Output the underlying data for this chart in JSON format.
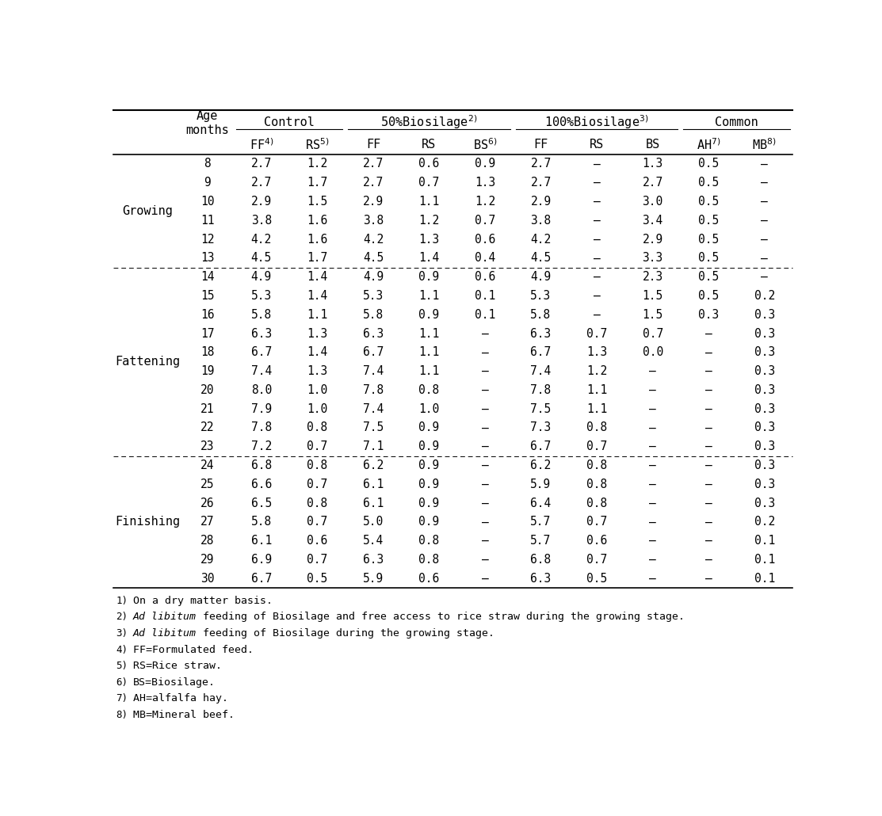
{
  "stages": [
    {
      "name": "Growing",
      "rows": [
        8,
        9,
        10,
        11,
        12,
        13
      ]
    },
    {
      "name": "Fattening",
      "rows": [
        14,
        15,
        16,
        17,
        18,
        19,
        20,
        21,
        22,
        23
      ]
    },
    {
      "name": "Finishing",
      "rows": [
        24,
        25,
        26,
        27,
        28,
        29,
        30
      ]
    }
  ],
  "data": {
    "8": [
      "2.7",
      "1.2",
      "2.7",
      "0.6",
      "0.9",
      "2.7",
      "-",
      "1.3",
      "0.5",
      "-"
    ],
    "9": [
      "2.7",
      "1.7",
      "2.7",
      "0.7",
      "1.3",
      "2.7",
      "-",
      "2.7",
      "0.5",
      "-"
    ],
    "10": [
      "2.9",
      "1.5",
      "2.9",
      "1.1",
      "1.2",
      "2.9",
      "-",
      "3.0",
      "0.5",
      "-"
    ],
    "11": [
      "3.8",
      "1.6",
      "3.8",
      "1.2",
      "0.7",
      "3.8",
      "-",
      "3.4",
      "0.5",
      "-"
    ],
    "12": [
      "4.2",
      "1.6",
      "4.2",
      "1.3",
      "0.6",
      "4.2",
      "-",
      "2.9",
      "0.5",
      "-"
    ],
    "13": [
      "4.5",
      "1.7",
      "4.5",
      "1.4",
      "0.4",
      "4.5",
      "-",
      "3.3",
      "0.5",
      "-"
    ],
    "14": [
      "4.9",
      "1.4",
      "4.9",
      "0.9",
      "0.6",
      "4.9",
      "-",
      "2.3",
      "0.5",
      "-"
    ],
    "15": [
      "5.3",
      "1.4",
      "5.3",
      "1.1",
      "0.1",
      "5.3",
      "-",
      "1.5",
      "0.5",
      "0.2"
    ],
    "16": [
      "5.8",
      "1.1",
      "5.8",
      "0.9",
      "0.1",
      "5.8",
      "-",
      "1.5",
      "0.3",
      "0.3"
    ],
    "17": [
      "6.3",
      "1.3",
      "6.3",
      "1.1",
      "-",
      "6.3",
      "0.7",
      "0.7",
      "-",
      "0.3"
    ],
    "18": [
      "6.7",
      "1.4",
      "6.7",
      "1.1",
      "-",
      "6.7",
      "1.3",
      "0.0",
      "-",
      "0.3"
    ],
    "19": [
      "7.4",
      "1.3",
      "7.4",
      "1.1",
      "-",
      "7.4",
      "1.2",
      "-",
      "-",
      "0.3"
    ],
    "20": [
      "8.0",
      "1.0",
      "7.8",
      "0.8",
      "-",
      "7.8",
      "1.1",
      "-",
      "-",
      "0.3"
    ],
    "21": [
      "7.9",
      "1.0",
      "7.4",
      "1.0",
      "-",
      "7.5",
      "1.1",
      "-",
      "-",
      "0.3"
    ],
    "22": [
      "7.8",
      "0.8",
      "7.5",
      "0.9",
      "-",
      "7.3",
      "0.8",
      "-",
      "-",
      "0.3"
    ],
    "23": [
      "7.2",
      "0.7",
      "7.1",
      "0.9",
      "-",
      "6.7",
      "0.7",
      "-",
      "-",
      "0.3"
    ],
    "24": [
      "6.8",
      "0.8",
      "6.2",
      "0.9",
      "-",
      "6.2",
      "0.8",
      "-",
      "-",
      "0.3"
    ],
    "25": [
      "6.6",
      "0.7",
      "6.1",
      "0.9",
      "-",
      "5.9",
      "0.8",
      "-",
      "-",
      "0.3"
    ],
    "26": [
      "6.5",
      "0.8",
      "6.1",
      "0.9",
      "-",
      "6.4",
      "0.8",
      "-",
      "-",
      "0.3"
    ],
    "27": [
      "5.8",
      "0.7",
      "5.0",
      "0.9",
      "-",
      "5.7",
      "0.7",
      "-",
      "-",
      "0.2"
    ],
    "28": [
      "6.1",
      "0.6",
      "5.4",
      "0.8",
      "-",
      "5.7",
      "0.6",
      "-",
      "-",
      "0.1"
    ],
    "29": [
      "6.9",
      "0.7",
      "6.3",
      "0.8",
      "-",
      "6.8",
      "0.7",
      "-",
      "-",
      "0.1"
    ],
    "30": [
      "6.7",
      "0.5",
      "5.9",
      "0.6",
      "-",
      "6.3",
      "0.5",
      "-",
      "-",
      "0.1"
    ]
  },
  "dashed_after_rows": [
    13,
    23
  ],
  "bg_color": "#ffffff",
  "text_color": "#000000",
  "font_size": 10.5,
  "header_font_size": 11.0,
  "footnote_font_size": 9.5
}
